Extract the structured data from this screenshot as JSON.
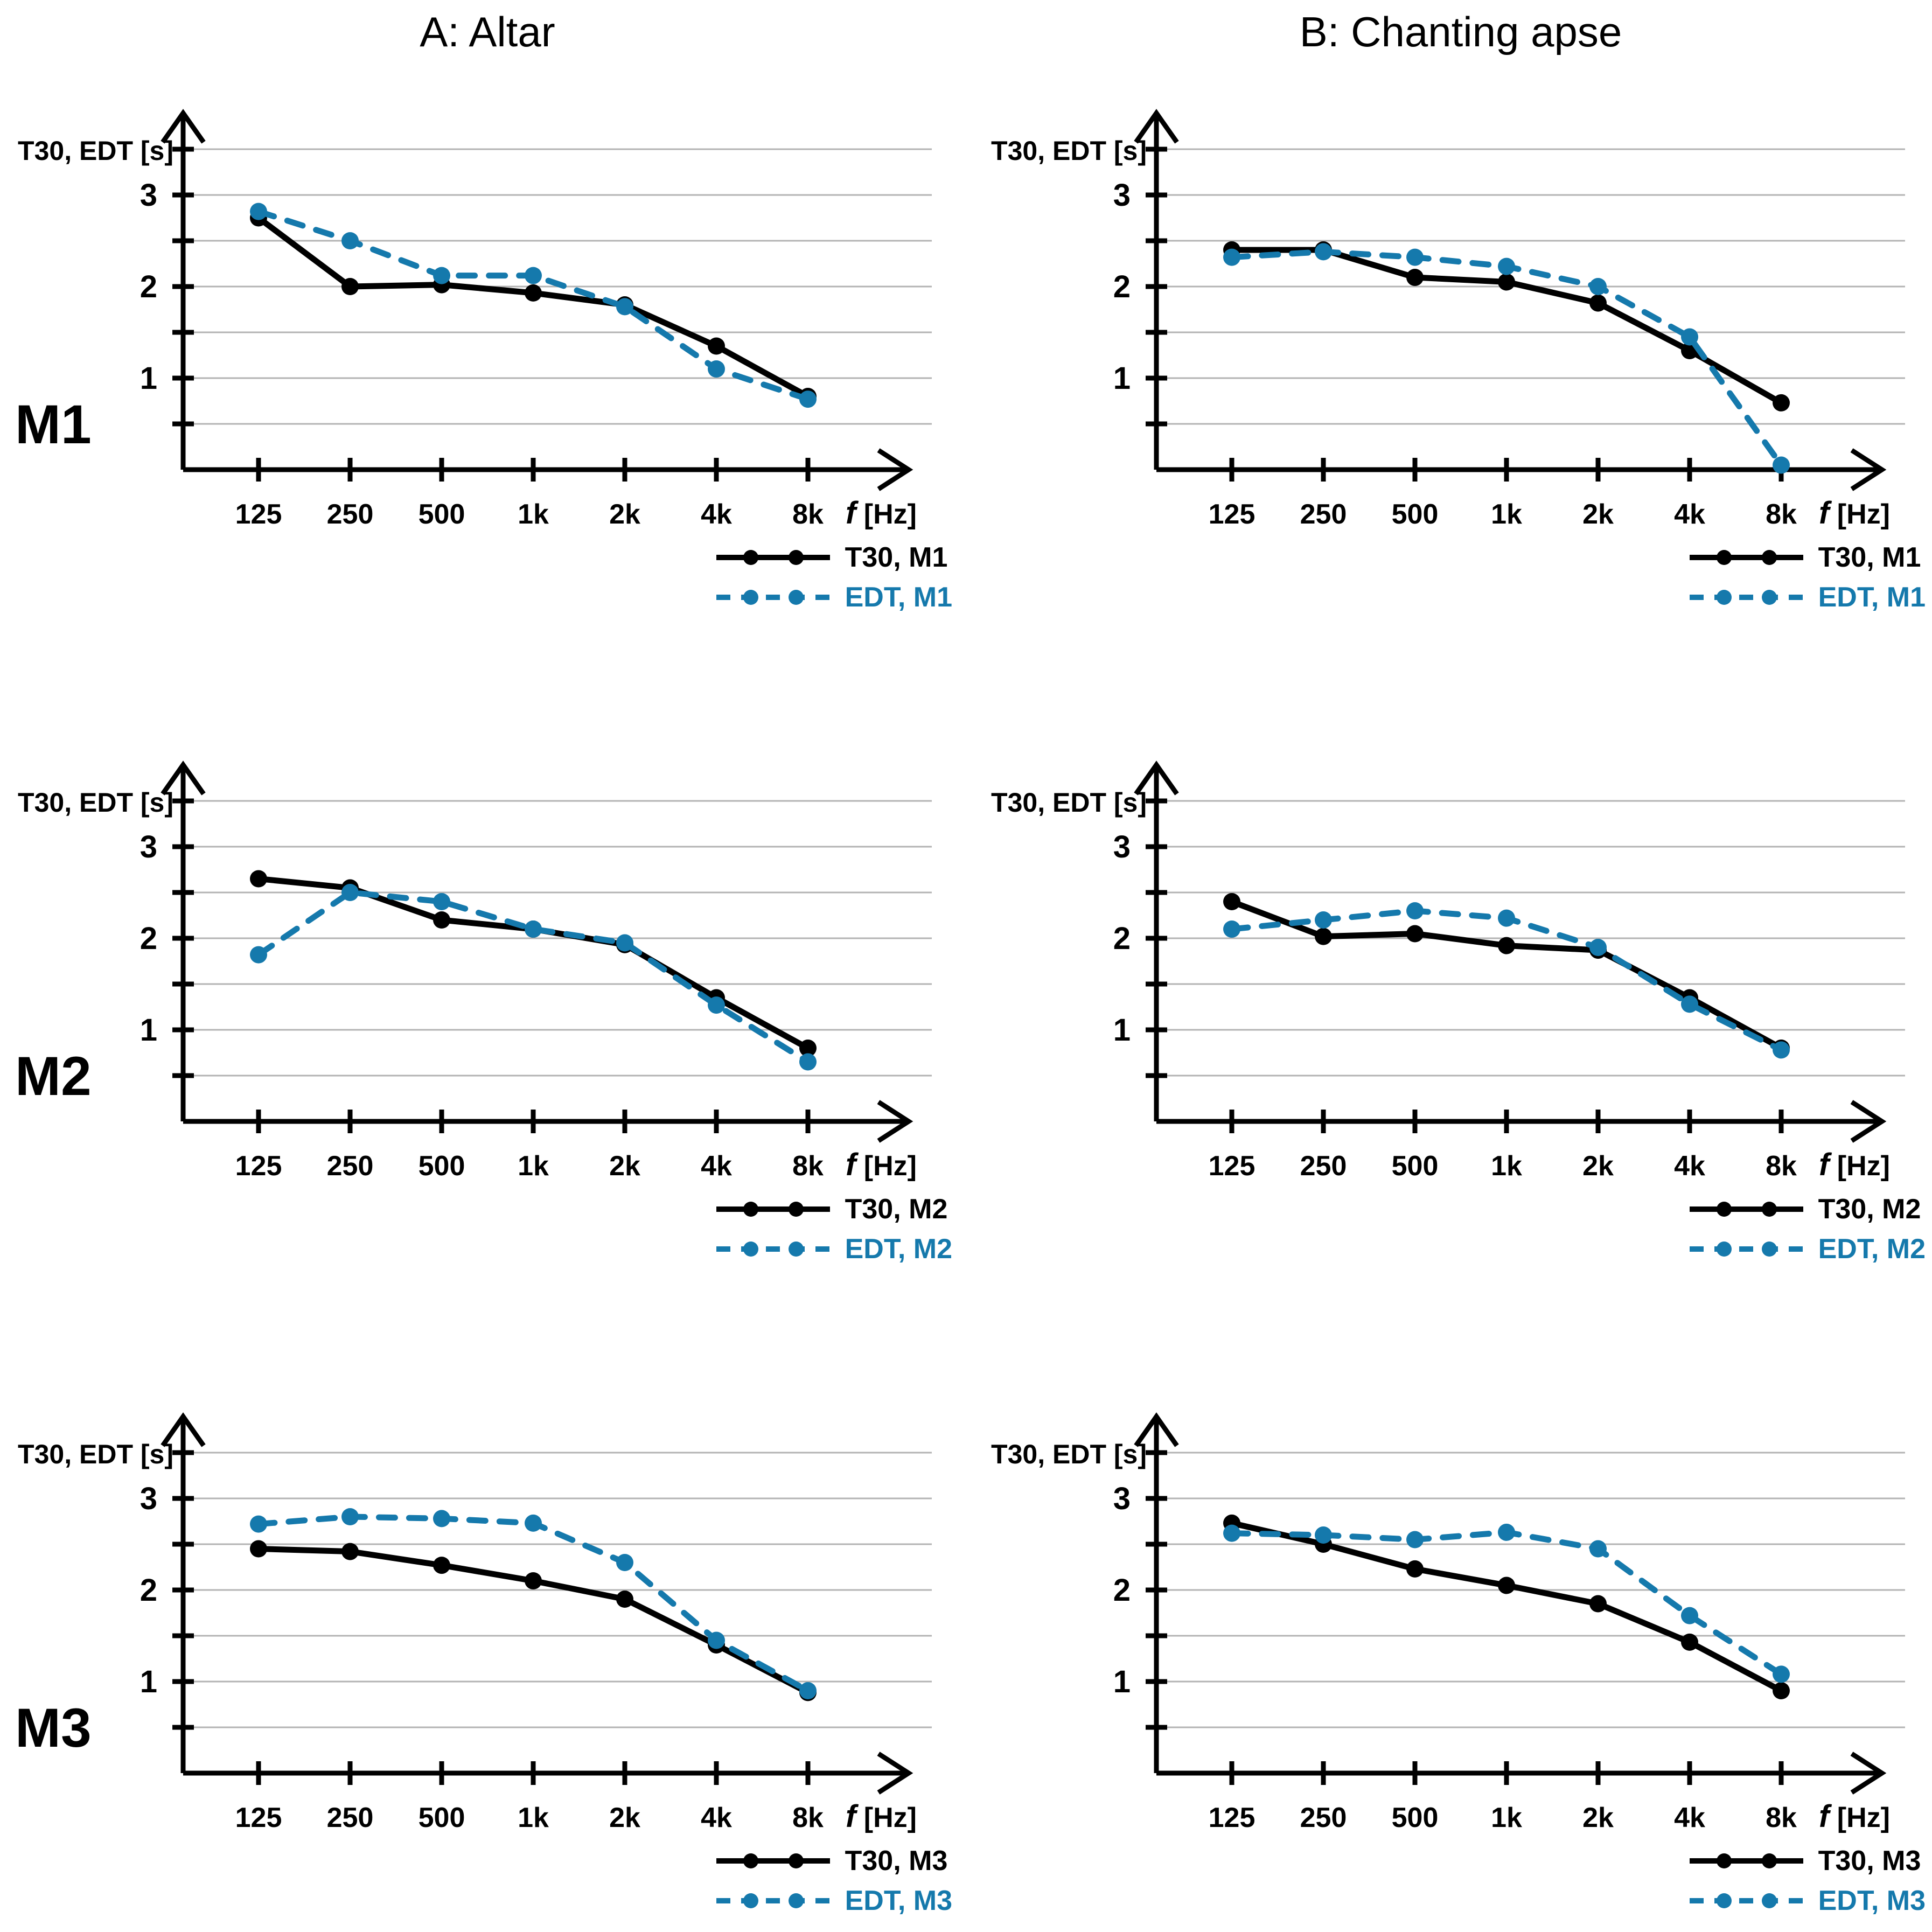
{
  "page": {
    "column_titles": {
      "A": "A: Altar",
      "B": "B: Chanting apse"
    },
    "row_labels": {
      "M1": "M1",
      "M2": "M2",
      "M3": "M3"
    }
  },
  "axis": {
    "y_label": "T30, EDT [s]",
    "x_label_f": "f",
    "x_label_unit": "[Hz]",
    "x_ticks": [
      "125",
      "250",
      "500",
      "1k",
      "2k",
      "4k",
      "8k"
    ],
    "y_tick_labels": [
      "1",
      "2",
      "3"
    ],
    "grid_values": [
      0.5,
      1,
      1.5,
      2,
      2.5,
      3,
      3.5
    ],
    "ylim": [
      0,
      3.5
    ]
  },
  "colors": {
    "t30": "#000000",
    "edt": "#1579ac",
    "grid": "#b3b3b3",
    "background": "#ffffff"
  },
  "chart_data": [
    {
      "id": "m1-altar",
      "type": "line",
      "row": "M1",
      "col": "A",
      "title": "A: Altar",
      "xlabel": "f [Hz]",
      "ylabel": "T30, EDT [s]",
      "categories": [
        "125",
        "250",
        "500",
        "1k",
        "2k",
        "4k",
        "8k"
      ],
      "ylim": [
        0,
        3.5
      ],
      "grid": true,
      "legend_position": "below-right",
      "series": [
        {
          "name": "T30, M1",
          "role": "t30",
          "line": "solid",
          "values": [
            2.75,
            2.0,
            2.02,
            1.93,
            1.8,
            1.35,
            0.8
          ]
        },
        {
          "name": "EDT, M1",
          "role": "edt",
          "line": "dashed",
          "values": [
            2.82,
            2.5,
            2.12,
            2.12,
            1.78,
            1.1,
            0.77
          ]
        }
      ]
    },
    {
      "id": "m1-apse",
      "type": "line",
      "row": "M1",
      "col": "B",
      "title": "B: Chanting apse",
      "xlabel": "f [Hz]",
      "ylabel": "T30, EDT [s]",
      "categories": [
        "125",
        "250",
        "500",
        "1k",
        "2k",
        "4k",
        "8k"
      ],
      "ylim": [
        0,
        3.5
      ],
      "grid": true,
      "legend_position": "below-right",
      "series": [
        {
          "name": "T30, M1",
          "role": "t30",
          "line": "solid",
          "values": [
            2.4,
            2.4,
            2.1,
            2.05,
            1.82,
            1.3,
            0.73
          ]
        },
        {
          "name": "EDT, M1",
          "role": "edt",
          "line": "dashed",
          "values": [
            2.32,
            2.38,
            2.32,
            2.22,
            2.0,
            1.45,
            0.05
          ]
        }
      ]
    },
    {
      "id": "m2-altar",
      "type": "line",
      "row": "M2",
      "col": "A",
      "title": "A: Altar",
      "xlabel": "f [Hz]",
      "ylabel": "T30, EDT [s]",
      "categories": [
        "125",
        "250",
        "500",
        "1k",
        "2k",
        "4k",
        "8k"
      ],
      "ylim": [
        0,
        3.5
      ],
      "grid": true,
      "legend_position": "below-right",
      "series": [
        {
          "name": "T30, M2",
          "role": "t30",
          "line": "solid",
          "values": [
            2.65,
            2.55,
            2.2,
            2.1,
            1.93,
            1.35,
            0.8
          ]
        },
        {
          "name": "EDT, M2",
          "role": "edt",
          "line": "dashed",
          "values": [
            1.82,
            2.5,
            2.4,
            2.1,
            1.95,
            1.27,
            0.65
          ]
        }
      ]
    },
    {
      "id": "m2-apse",
      "type": "line",
      "row": "M2",
      "col": "B",
      "title": "B: Chanting apse",
      "xlabel": "f [Hz]",
      "ylabel": "T30, EDT [s]",
      "categories": [
        "125",
        "250",
        "500",
        "1k",
        "2k",
        "4k",
        "8k"
      ],
      "ylim": [
        0,
        3.5
      ],
      "grid": true,
      "legend_position": "below-right",
      "series": [
        {
          "name": "T30, M2",
          "role": "t30",
          "line": "solid",
          "values": [
            2.4,
            2.02,
            2.05,
            1.92,
            1.87,
            1.35,
            0.8
          ]
        },
        {
          "name": "EDT, M2",
          "role": "edt",
          "line": "dashed",
          "values": [
            2.1,
            2.2,
            2.3,
            2.22,
            1.9,
            1.28,
            0.78
          ]
        }
      ]
    },
    {
      "id": "m3-altar",
      "type": "line",
      "row": "M3",
      "col": "A",
      "title": "A: Altar",
      "xlabel": "f [Hz]",
      "ylabel": "T30, EDT [s]",
      "categories": [
        "125",
        "250",
        "500",
        "1k",
        "2k",
        "4k",
        "8k"
      ],
      "ylim": [
        0,
        3.5
      ],
      "grid": true,
      "legend_position": "below-right",
      "series": [
        {
          "name": "T30, M3",
          "role": "t30",
          "line": "solid",
          "values": [
            2.45,
            2.42,
            2.27,
            2.1,
            1.9,
            1.4,
            0.88
          ]
        },
        {
          "name": "EDT, M3",
          "role": "edt",
          "line": "dashed",
          "values": [
            2.72,
            2.8,
            2.78,
            2.73,
            2.3,
            1.45,
            0.9
          ]
        }
      ]
    },
    {
      "id": "m3-apse",
      "type": "line",
      "row": "M3",
      "col": "B",
      "title": "B: Chanting apse",
      "xlabel": "f [Hz]",
      "ylabel": "T30, EDT [s]",
      "categories": [
        "125",
        "250",
        "500",
        "1k",
        "2k",
        "4k",
        "8k"
      ],
      "ylim": [
        0,
        3.5
      ],
      "grid": true,
      "legend_position": "below-right",
      "series": [
        {
          "name": "T30, M3",
          "role": "t30",
          "line": "solid",
          "values": [
            2.73,
            2.5,
            2.23,
            2.05,
            1.85,
            1.43,
            0.9
          ]
        },
        {
          "name": "EDT, M3",
          "role": "edt",
          "line": "dashed",
          "values": [
            2.62,
            2.6,
            2.55,
            2.63,
            2.45,
            1.72,
            1.08
          ]
        }
      ]
    }
  ]
}
